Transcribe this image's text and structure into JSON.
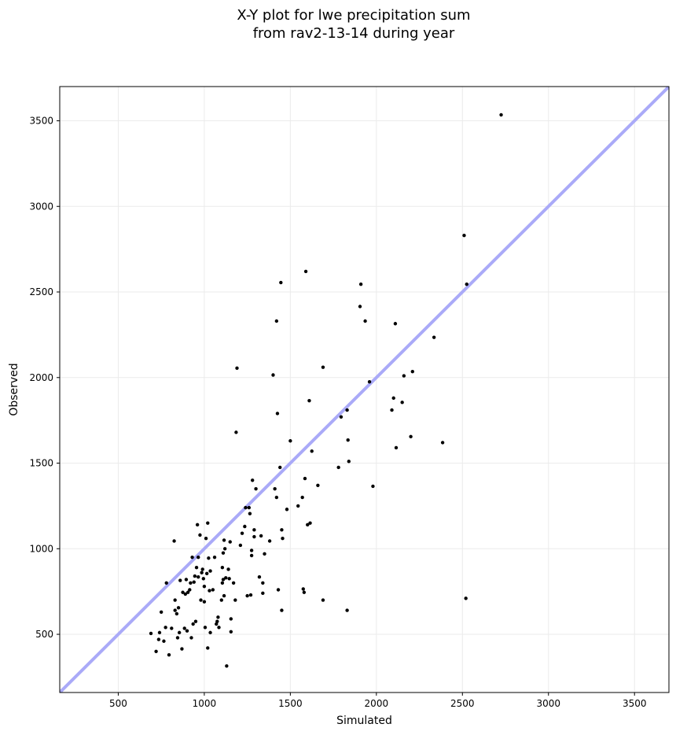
{
  "chart_data": {
    "type": "scatter",
    "title_line1": "X-Y plot for lwe precipitation sum",
    "title_line2": "from rav2-13-14 during year",
    "xlabel": "Simulated",
    "ylabel": "Observed",
    "xlim": [
      160,
      3700
    ],
    "ylim": [
      160,
      3700
    ],
    "xticks": [
      500,
      1000,
      1500,
      2000,
      2500,
      3000,
      3500
    ],
    "yticks": [
      500,
      1000,
      1500,
      2000,
      2500,
      3000,
      3500
    ],
    "grid": true,
    "reference_line": "1:1",
    "colors": {
      "points": "#000000",
      "reference_line": "#aaaaf8",
      "grid": "#ebebeb"
    },
    "points": [
      [
        690,
        505
      ],
      [
        720,
        400
      ],
      [
        735,
        470
      ],
      [
        740,
        510
      ],
      [
        750,
        630
      ],
      [
        765,
        460
      ],
      [
        775,
        540
      ],
      [
        780,
        800
      ],
      [
        795,
        380
      ],
      [
        810,
        535
      ],
      [
        825,
        1045
      ],
      [
        830,
        640
      ],
      [
        830,
        700
      ],
      [
        840,
        620
      ],
      [
        845,
        480
      ],
      [
        850,
        655
      ],
      [
        855,
        510
      ],
      [
        860,
        815
      ],
      [
        870,
        415
      ],
      [
        875,
        745
      ],
      [
        885,
        535
      ],
      [
        890,
        735
      ],
      [
        895,
        820
      ],
      [
        900,
        520
      ],
      [
        905,
        745
      ],
      [
        915,
        760
      ],
      [
        920,
        800
      ],
      [
        925,
        480
      ],
      [
        930,
        950
      ],
      [
        935,
        560
      ],
      [
        940,
        805
      ],
      [
        945,
        840
      ],
      [
        950,
        575
      ],
      [
        955,
        890
      ],
      [
        960,
        1140
      ],
      [
        965,
        950
      ],
      [
        965,
        835
      ],
      [
        975,
        1080
      ],
      [
        980,
        700
      ],
      [
        985,
        860
      ],
      [
        990,
        880
      ],
      [
        995,
        825
      ],
      [
        1000,
        690
      ],
      [
        1000,
        780
      ],
      [
        1005,
        540
      ],
      [
        1010,
        1060
      ],
      [
        1015,
        855
      ],
      [
        1020,
        1150
      ],
      [
        1020,
        420
      ],
      [
        1025,
        945
      ],
      [
        1030,
        755
      ],
      [
        1035,
        870
      ],
      [
        1035,
        510
      ],
      [
        1050,
        760
      ],
      [
        1060,
        950
      ],
      [
        1070,
        560
      ],
      [
        1075,
        575
      ],
      [
        1080,
        600
      ],
      [
        1085,
        540
      ],
      [
        1100,
        700
      ],
      [
        1105,
        890
      ],
      [
        1105,
        800
      ],
      [
        1110,
        975
      ],
      [
        1110,
        820
      ],
      [
        1115,
        1050
      ],
      [
        1115,
        725
      ],
      [
        1120,
        1000
      ],
      [
        1125,
        830
      ],
      [
        1130,
        315
      ],
      [
        1140,
        880
      ],
      [
        1145,
        825
      ],
      [
        1150,
        1040
      ],
      [
        1155,
        515
      ],
      [
        1155,
        590
      ],
      [
        1170,
        800
      ],
      [
        1180,
        700
      ],
      [
        1185,
        1680
      ],
      [
        1190,
        2055
      ],
      [
        1210,
        1020
      ],
      [
        1220,
        1090
      ],
      [
        1235,
        1130
      ],
      [
        1240,
        1240
      ],
      [
        1250,
        725
      ],
      [
        1260,
        1240
      ],
      [
        1265,
        1205
      ],
      [
        1270,
        730
      ],
      [
        1275,
        990
      ],
      [
        1275,
        960
      ],
      [
        1280,
        1400
      ],
      [
        1290,
        1070
      ],
      [
        1290,
        1110
      ],
      [
        1300,
        1350
      ],
      [
        1320,
        835
      ],
      [
        1330,
        1075
      ],
      [
        1340,
        800
      ],
      [
        1340,
        740
      ],
      [
        1350,
        970
      ],
      [
        1380,
        1045
      ],
      [
        1400,
        2015
      ],
      [
        1410,
        1350
      ],
      [
        1420,
        1300
      ],
      [
        1420,
        2330
      ],
      [
        1425,
        1790
      ],
      [
        1430,
        760
      ],
      [
        1440,
        1475
      ],
      [
        1445,
        2555
      ],
      [
        1450,
        1110
      ],
      [
        1450,
        640
      ],
      [
        1455,
        1060
      ],
      [
        1480,
        1230
      ],
      [
        1500,
        1630
      ],
      [
        1545,
        1250
      ],
      [
        1570,
        1300
      ],
      [
        1575,
        765
      ],
      [
        1580,
        745
      ],
      [
        1585,
        1410
      ],
      [
        1590,
        2620
      ],
      [
        1600,
        1140
      ],
      [
        1610,
        1865
      ],
      [
        1615,
        1150
      ],
      [
        1625,
        1570
      ],
      [
        1660,
        1370
      ],
      [
        1690,
        2060
      ],
      [
        1690,
        700
      ],
      [
        1780,
        1475
      ],
      [
        1795,
        1770
      ],
      [
        1830,
        1810
      ],
      [
        1830,
        640
      ],
      [
        1835,
        1635
      ],
      [
        1840,
        1510
      ],
      [
        1905,
        2415
      ],
      [
        1910,
        2545
      ],
      [
        1935,
        2330
      ],
      [
        1960,
        1975
      ],
      [
        1980,
        1365
      ],
      [
        2090,
        1810
      ],
      [
        2100,
        1880
      ],
      [
        2110,
        2315
      ],
      [
        2115,
        1590
      ],
      [
        2150,
        1855
      ],
      [
        2160,
        2010
      ],
      [
        2200,
        1655
      ],
      [
        2210,
        2035
      ],
      [
        2335,
        2235
      ],
      [
        2385,
        1620
      ],
      [
        2510,
        2830
      ],
      [
        2520,
        710
      ],
      [
        2525,
        2545
      ],
      [
        2725,
        3535
      ]
    ]
  }
}
